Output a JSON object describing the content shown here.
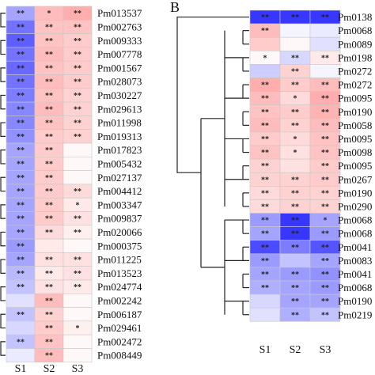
{
  "chart_data": [
    {
      "type": "heatmap",
      "panel": "",
      "columns": [
        "S1",
        "S2",
        "S3"
      ],
      "rows": [
        {
          "label": "Pm013537",
          "values": [
            -0.45,
            0.45,
            0.55
          ],
          "sig": [
            "**",
            "*",
            "**"
          ]
        },
        {
          "label": "Pm002763",
          "values": [
            -0.7,
            0.4,
            0.4
          ],
          "sig": [
            "**",
            "**",
            "**"
          ]
        },
        {
          "label": "Pm009333",
          "values": [
            -0.8,
            0.4,
            0.35
          ],
          "sig": [
            "**",
            "**",
            "**"
          ]
        },
        {
          "label": "Pm007778",
          "values": [
            -0.7,
            0.45,
            0.35
          ],
          "sig": [
            "**",
            "**",
            "**"
          ]
        },
        {
          "label": "Pm001567",
          "values": [
            -0.75,
            0.4,
            0.35
          ],
          "sig": [
            "**",
            "**",
            "**"
          ]
        },
        {
          "label": "Pm028073",
          "values": [
            -0.7,
            0.45,
            0.35
          ],
          "sig": [
            "**",
            "**",
            "**"
          ]
        },
        {
          "label": "Pm030227",
          "values": [
            -0.65,
            0.4,
            0.3
          ],
          "sig": [
            "**",
            "**",
            "**"
          ]
        },
        {
          "label": "Pm029613",
          "values": [
            -0.6,
            0.45,
            0.3
          ],
          "sig": [
            "**",
            "**",
            "**"
          ]
        },
        {
          "label": "Pm011998",
          "values": [
            -0.6,
            0.4,
            0.3
          ],
          "sig": [
            "**",
            "**",
            "**"
          ]
        },
        {
          "label": "Pm019313",
          "values": [
            -0.55,
            0.35,
            0.3
          ],
          "sig": [
            "**",
            "**",
            "**"
          ]
        },
        {
          "label": "Pm017823",
          "values": [
            -0.45,
            0.35,
            0.05
          ],
          "sig": [
            "**",
            "**",
            ""
          ]
        },
        {
          "label": "Pm005432",
          "values": [
            -0.45,
            0.35,
            0.05
          ],
          "sig": [
            "**",
            "**",
            ""
          ]
        },
        {
          "label": "Pm027137",
          "values": [
            -0.45,
            0.35,
            0.05
          ],
          "sig": [
            "**",
            "**",
            ""
          ]
        },
        {
          "label": "Pm004412",
          "values": [
            -0.45,
            0.35,
            0.25
          ],
          "sig": [
            "**",
            "**",
            "**"
          ]
        },
        {
          "label": "Pm003347",
          "values": [
            -0.45,
            0.35,
            0.15
          ],
          "sig": [
            "**",
            "**",
            "*"
          ]
        },
        {
          "label": "Pm009837",
          "values": [
            -0.45,
            0.35,
            0.2
          ],
          "sig": [
            "**",
            "**",
            "**"
          ]
        },
        {
          "label": "Pm020066",
          "values": [
            -0.45,
            0.25,
            0.1
          ],
          "sig": [
            "**",
            "**",
            "**"
          ]
        },
        {
          "label": "Pm000375",
          "values": [
            -0.5,
            0.15,
            0.05
          ],
          "sig": [
            "**",
            "",
            ""
          ]
        },
        {
          "label": "Pm011225",
          "values": [
            -0.45,
            0.2,
            0.2
          ],
          "sig": [
            "**",
            "**",
            "**"
          ]
        },
        {
          "label": "Pm013523",
          "values": [
            -0.35,
            0.15,
            0.2
          ],
          "sig": [
            "**",
            "**",
            "**"
          ]
        },
        {
          "label": "Pm024774",
          "values": [
            -0.3,
            0.2,
            0.15
          ],
          "sig": [
            "**",
            "**",
            "**"
          ]
        },
        {
          "label": "Pm002242",
          "values": [
            -0.15,
            0.45,
            0.05
          ],
          "sig": [
            "",
            "**",
            ""
          ]
        },
        {
          "label": "Pm006187",
          "values": [
            -0.3,
            0.3,
            0.05
          ],
          "sig": [
            "**",
            "**",
            ""
          ]
        },
        {
          "label": "Pm029461",
          "values": [
            -0.2,
            0.35,
            0.1
          ],
          "sig": [
            "",
            "**",
            "*"
          ]
        },
        {
          "label": "Pm002472",
          "values": [
            -0.3,
            0.4,
            0.05
          ],
          "sig": [
            "**",
            "**",
            ""
          ]
        },
        {
          "label": "Pm008449",
          "values": [
            -0.1,
            0.45,
            0.05
          ],
          "sig": [
            "",
            "**",
            ""
          ]
        }
      ]
    },
    {
      "type": "heatmap",
      "panel": "B",
      "columns": [
        "S1",
        "S2",
        "S3"
      ],
      "rows": [
        {
          "label": "Pm0138",
          "values": [
            -1.0,
            -1.0,
            -1.0
          ],
          "sig": [
            "**",
            "**",
            "**"
          ]
        },
        {
          "label": "Pm0068",
          "values": [
            0.45,
            -0.05,
            -0.1
          ],
          "sig": [
            "**",
            "",
            ""
          ]
        },
        {
          "label": "Pm0089",
          "values": [
            0.35,
            0.05,
            -0.15
          ],
          "sig": [
            "",
            "",
            ""
          ]
        },
        {
          "label": "Pm0198",
          "values": [
            0.05,
            -0.2,
            0.15
          ],
          "sig": [
            "*",
            "**",
            "**"
          ]
        },
        {
          "label": "Pm0272",
          "values": [
            -0.25,
            0.3,
            -0.05
          ],
          "sig": [
            "",
            "**",
            ""
          ]
        },
        {
          "label": "Pm0272",
          "values": [
            0.55,
            0.35,
            0.45
          ],
          "sig": [
            "**",
            "**",
            "**"
          ]
        },
        {
          "label": "Pm0095",
          "values": [
            0.45,
            0.25,
            0.55
          ],
          "sig": [
            "**",
            "*",
            "**"
          ]
        },
        {
          "label": "Pm0190",
          "values": [
            0.4,
            0.35,
            0.5
          ],
          "sig": [
            "**",
            "**",
            "**"
          ]
        },
        {
          "label": "Pm0058",
          "values": [
            0.45,
            0.3,
            0.45
          ],
          "sig": [
            "**",
            "**",
            "**"
          ]
        },
        {
          "label": "Pm0095",
          "values": [
            0.35,
            0.25,
            0.4
          ],
          "sig": [
            "**",
            "*",
            "**"
          ]
        },
        {
          "label": "Pm0098",
          "values": [
            0.4,
            0.2,
            0.4
          ],
          "sig": [
            "**",
            "*",
            "**"
          ]
        },
        {
          "label": "Pm0095",
          "values": [
            0.3,
            0.2,
            0.35
          ],
          "sig": [
            "**",
            "",
            "**"
          ]
        },
        {
          "label": "Pm0267",
          "values": [
            0.3,
            0.3,
            0.35
          ],
          "sig": [
            "**",
            "**",
            "**"
          ]
        },
        {
          "label": "Pm0190",
          "values": [
            0.25,
            0.3,
            0.3
          ],
          "sig": [
            "**",
            "**",
            "**"
          ]
        },
        {
          "label": "Pm0290",
          "values": [
            0.25,
            0.3,
            0.3
          ],
          "sig": [
            "**",
            "**",
            "**"
          ]
        },
        {
          "label": "Pm0068",
          "values": [
            -0.5,
            -1.0,
            -0.45
          ],
          "sig": [
            "**",
            "**",
            "*"
          ]
        },
        {
          "label": "Pm0068",
          "values": [
            -0.45,
            -1.0,
            -0.5
          ],
          "sig": [
            "**",
            "**",
            "**"
          ]
        },
        {
          "label": "Pm0041",
          "values": [
            -0.9,
            -0.65,
            -0.85
          ],
          "sig": [
            "**",
            "**",
            "**"
          ]
        },
        {
          "label": "Pm0083",
          "values": [
            -0.5,
            -0.3,
            -0.45
          ],
          "sig": [
            "**",
            "",
            "**"
          ]
        },
        {
          "label": "Pm0041",
          "values": [
            -0.45,
            -0.5,
            -0.55
          ],
          "sig": [
            "**",
            "**",
            "**"
          ]
        },
        {
          "label": "Pm0068",
          "values": [
            -0.4,
            -0.45,
            -0.5
          ],
          "sig": [
            "**",
            "**",
            "**"
          ]
        },
        {
          "label": "Pm0190",
          "values": [
            -0.2,
            -0.45,
            -0.45
          ],
          "sig": [
            "",
            "**",
            "**"
          ]
        },
        {
          "label": "Pm0219",
          "values": [
            -0.15,
            -0.4,
            -0.3
          ],
          "sig": [
            "",
            "**",
            "**"
          ]
        }
      ]
    }
  ]
}
